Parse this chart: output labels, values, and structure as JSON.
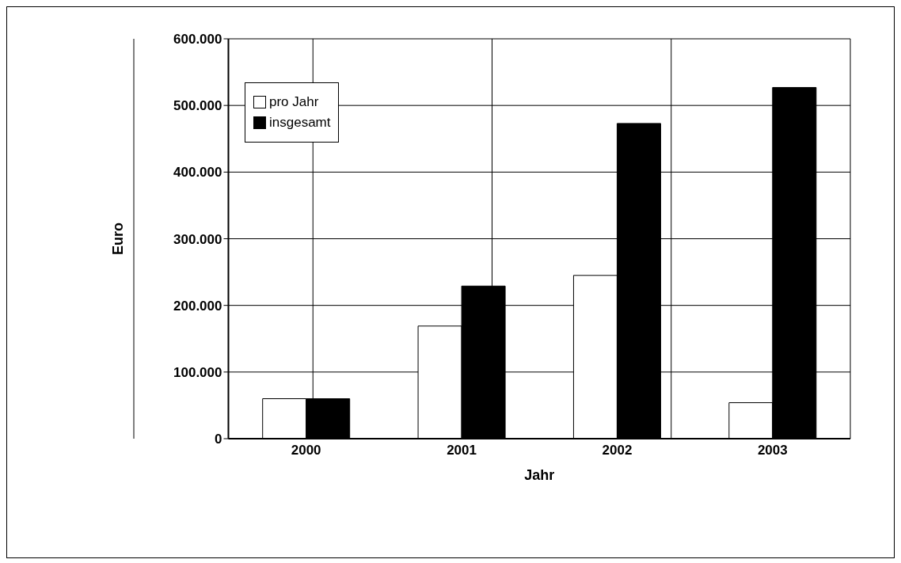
{
  "chart_data": {
    "type": "bar",
    "xlabel": "Jahr",
    "ylabel": "Euro",
    "categories": [
      "2000",
      "2001",
      "2002",
      "2003"
    ],
    "series": [
      {
        "name": "pro Jahr",
        "color": "#ffffff",
        "values": [
          60000,
          169000,
          245000,
          54000
        ]
      },
      {
        "name": "insgesamt",
        "color": "#000000",
        "values": [
          60000,
          229000,
          473000,
          527000
        ]
      }
    ],
    "ylim": [
      0,
      600000
    ],
    "yticks": [
      {
        "value": 0,
        "label": "0"
      },
      {
        "value": 100000,
        "label": "100.000"
      },
      {
        "value": 200000,
        "label": "200.000"
      },
      {
        "value": 300000,
        "label": "300.000"
      },
      {
        "value": 400000,
        "label": "400.000"
      },
      {
        "value": 500000,
        "label": "500.000"
      },
      {
        "value": 600000,
        "label": "600.000"
      }
    ],
    "grid": true,
    "legend": "top left"
  }
}
